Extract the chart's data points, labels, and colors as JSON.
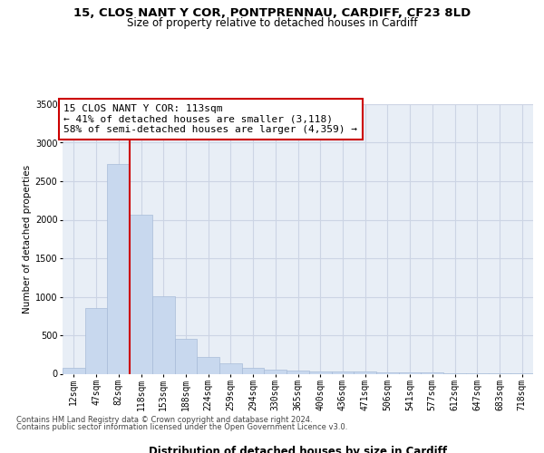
{
  "title1": "15, CLOS NANT Y COR, PONTPRENNAU, CARDIFF, CF23 8LD",
  "title2": "Size of property relative to detached houses in Cardiff",
  "xlabel": "Distribution of detached houses by size in Cardiff",
  "ylabel": "Number of detached properties",
  "categories": [
    "12sqm",
    "47sqm",
    "82sqm",
    "118sqm",
    "153sqm",
    "188sqm",
    "224sqm",
    "259sqm",
    "294sqm",
    "330sqm",
    "365sqm",
    "400sqm",
    "436sqm",
    "471sqm",
    "506sqm",
    "541sqm",
    "577sqm",
    "612sqm",
    "647sqm",
    "683sqm",
    "718sqm"
  ],
  "values": [
    80,
    850,
    2720,
    2060,
    1010,
    450,
    220,
    140,
    75,
    55,
    45,
    35,
    30,
    25,
    20,
    15,
    12,
    8,
    6,
    4,
    3
  ],
  "bar_color": "#c8d8ee",
  "bar_edge_color": "#a8bcd8",
  "vline_color": "#cc0000",
  "vline_x": 2.5,
  "annotation_line1": "15 CLOS NANT Y COR: 113sqm",
  "annotation_line2": "← 41% of detached houses are smaller (3,118)",
  "annotation_line3": "58% of semi-detached houses are larger (4,359) →",
  "annotation_box_facecolor": "#ffffff",
  "annotation_border_color": "#cc0000",
  "ylim": [
    0,
    3500
  ],
  "yticks": [
    0,
    500,
    1000,
    1500,
    2000,
    2500,
    3000,
    3500
  ],
  "grid_color": "#ccd4e4",
  "background_color": "#e8eef6",
  "footer_line1": "Contains HM Land Registry data © Crown copyright and database right 2024.",
  "footer_line2": "Contains public sector information licensed under the Open Government Licence v3.0.",
  "title1_fontsize": 9.5,
  "title2_fontsize": 8.5,
  "xlabel_fontsize": 8.5,
  "ylabel_fontsize": 7.5,
  "tick_fontsize": 7,
  "annotation_fontsize": 8,
  "footer_fontsize": 6
}
